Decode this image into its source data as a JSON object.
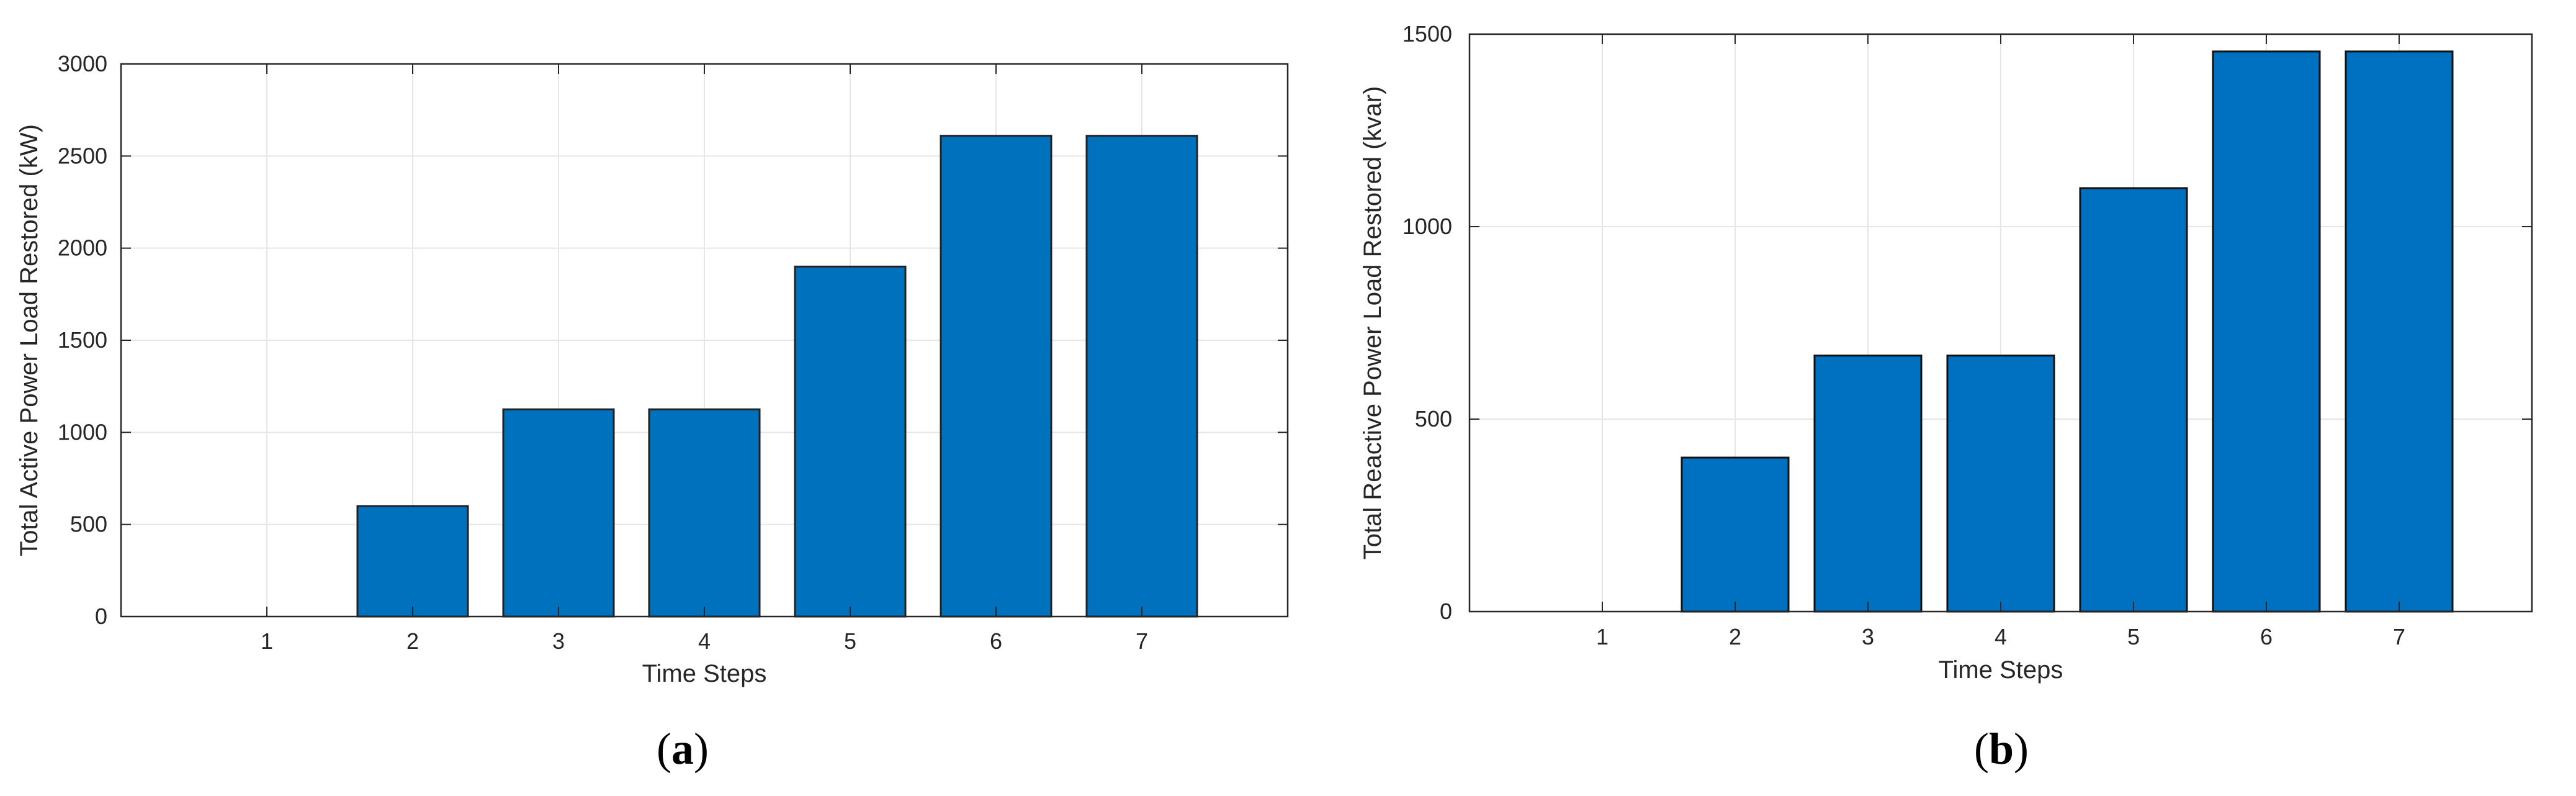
{
  "chart_data": [
    {
      "type": "bar",
      "panel": "(a)",
      "categories": [
        "1",
        "2",
        "3",
        "4",
        "5",
        "6",
        "7"
      ],
      "values": [
        0,
        600,
        1125,
        1125,
        1900,
        2610,
        2610
      ],
      "xlabel": "Time Steps",
      "ylabel": "Total Active Power Load Restored (kW)",
      "xlim": [
        0,
        8
      ],
      "ylim": [
        0,
        3000
      ],
      "yticks": [
        "0",
        "500",
        "1000",
        "1500",
        "2000",
        "2500",
        "3000"
      ],
      "grid": true,
      "bar_color": "#0072BD"
    },
    {
      "type": "bar",
      "panel": "(b)",
      "categories": [
        "1",
        "2",
        "3",
        "4",
        "5",
        "6",
        "7"
      ],
      "values": [
        0,
        400,
        665,
        665,
        1100,
        1455,
        1455
      ],
      "xlabel": "Time Steps",
      "ylabel": "Total Reactive Power Load Restored  (kvar)",
      "xlim": [
        0,
        8
      ],
      "ylim": [
        0,
        1500
      ],
      "yticks": [
        "0",
        "500",
        "1000",
        "1500"
      ],
      "grid": true,
      "bar_color": "#0070C0"
    }
  ]
}
